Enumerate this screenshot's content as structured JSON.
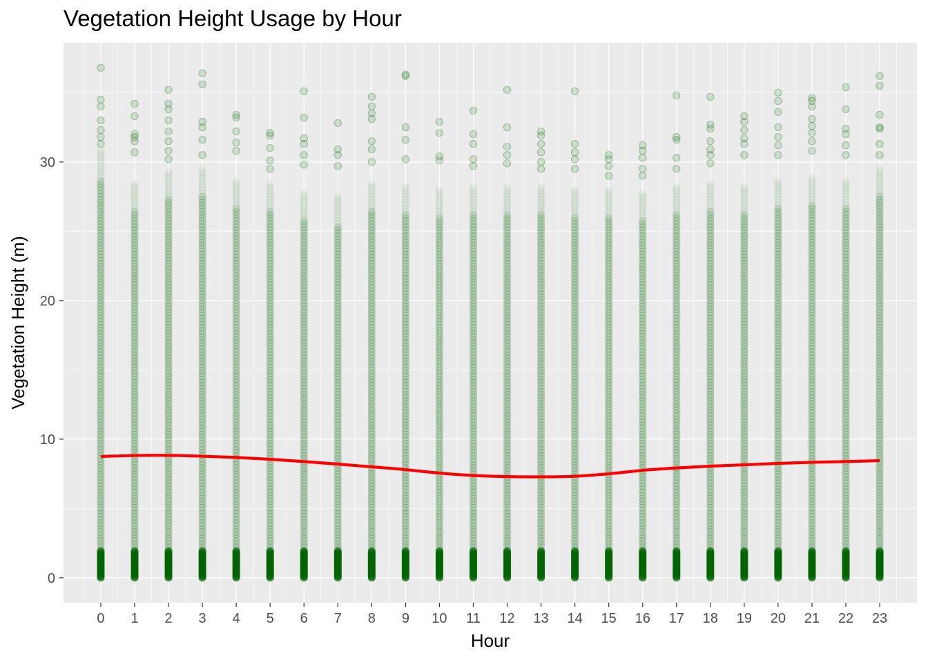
{
  "chart_data": {
    "type": "scatter",
    "title": "Vegetation Height Usage by Hour",
    "xlabel": "Hour",
    "ylabel": "Vegetation Height (m)",
    "x_ticks": [
      0,
      1,
      2,
      3,
      4,
      5,
      6,
      7,
      8,
      9,
      10,
      11,
      12,
      13,
      14,
      15,
      16,
      17,
      18,
      19,
      20,
      21,
      22,
      23
    ],
    "y_ticks": [
      0,
      10,
      20,
      30
    ],
    "xlim": [
      -1.1,
      24.1
    ],
    "ylim": [
      -1.8,
      38.6
    ],
    "grid": true,
    "point_color": "#006400",
    "point_alpha": 0.15,
    "dense_max": [
      30.8,
      28.5,
      29.3,
      29.5,
      28.8,
      28.5,
      27.8,
      27.5,
      28.5,
      28.3,
      28.0,
      28.3,
      28.2,
      28.2,
      28.0,
      28.1,
      27.8,
      28.2,
      28.5,
      28.2,
      28.8,
      29.0,
      28.8,
      29.5
    ],
    "outliers": [
      [
        36.8,
        34.5,
        34.0,
        33.0,
        32.3,
        31.8,
        31.3
      ],
      [
        34.2,
        33.3,
        32.0,
        31.8,
        31.5,
        30.7
      ],
      [
        35.2,
        34.2,
        33.8,
        33.0,
        32.2,
        31.5,
        30.8,
        30.2
      ],
      [
        36.4,
        35.6,
        32.9,
        32.5,
        31.6,
        30.5
      ],
      [
        33.4,
        33.2,
        32.2,
        31.4,
        30.8
      ],
      [
        32.1,
        31.9,
        31.0,
        30.1,
        29.5
      ],
      [
        35.1,
        33.2,
        31.7,
        31.3,
        30.5,
        29.8
      ],
      [
        32.8,
        30.9,
        30.5,
        29.7
      ],
      [
        34.7,
        34.0,
        33.5,
        33.1,
        31.5,
        30.9,
        30.0
      ],
      [
        36.3,
        36.2,
        32.5,
        31.6,
        30.2
      ],
      [
        32.9,
        32.1,
        30.4,
        30.1
      ],
      [
        33.7,
        32.0,
        31.3,
        30.2,
        29.7
      ],
      [
        35.2,
        32.5,
        31.1,
        30.5,
        29.9
      ],
      [
        32.2,
        31.9,
        31.3,
        30.7,
        30.0,
        29.5
      ],
      [
        35.1,
        31.3,
        30.7,
        30.2,
        29.5
      ],
      [
        30.5,
        30.2,
        29.7,
        29.0
      ],
      [
        31.2,
        30.8,
        30.3,
        29.5,
        29.0
      ],
      [
        34.8,
        31.8,
        31.6,
        30.3,
        29.5
      ],
      [
        34.7,
        32.7,
        32.4,
        31.5,
        30.9,
        30.5,
        29.9
      ],
      [
        33.3,
        32.9,
        32.3,
        31.7,
        31.3,
        30.5
      ],
      [
        35.0,
        34.4,
        33.6,
        32.5,
        31.8,
        31.2,
        30.5
      ],
      [
        34.6,
        34.4,
        34.0,
        33.1,
        32.6,
        32.1,
        31.5,
        30.8
      ],
      [
        35.4,
        33.8,
        32.4,
        32.0,
        31.2,
        30.5
      ],
      [
        36.2,
        35.5,
        33.4,
        32.5,
        32.4,
        31.3,
        30.5
      ]
    ],
    "smooth_line": {
      "color": "#ff0000",
      "x": [
        0,
        1,
        2,
        3,
        4,
        5,
        6,
        7,
        8,
        9,
        10,
        11,
        12,
        13,
        14,
        15,
        16,
        17,
        18,
        19,
        20,
        21,
        22,
        23
      ],
      "y": [
        8.75,
        8.82,
        8.83,
        8.77,
        8.68,
        8.55,
        8.38,
        8.2,
        8.0,
        7.8,
        7.55,
        7.38,
        7.3,
        7.28,
        7.32,
        7.5,
        7.75,
        7.92,
        8.05,
        8.15,
        8.25,
        8.33,
        8.38,
        8.45
      ]
    }
  }
}
